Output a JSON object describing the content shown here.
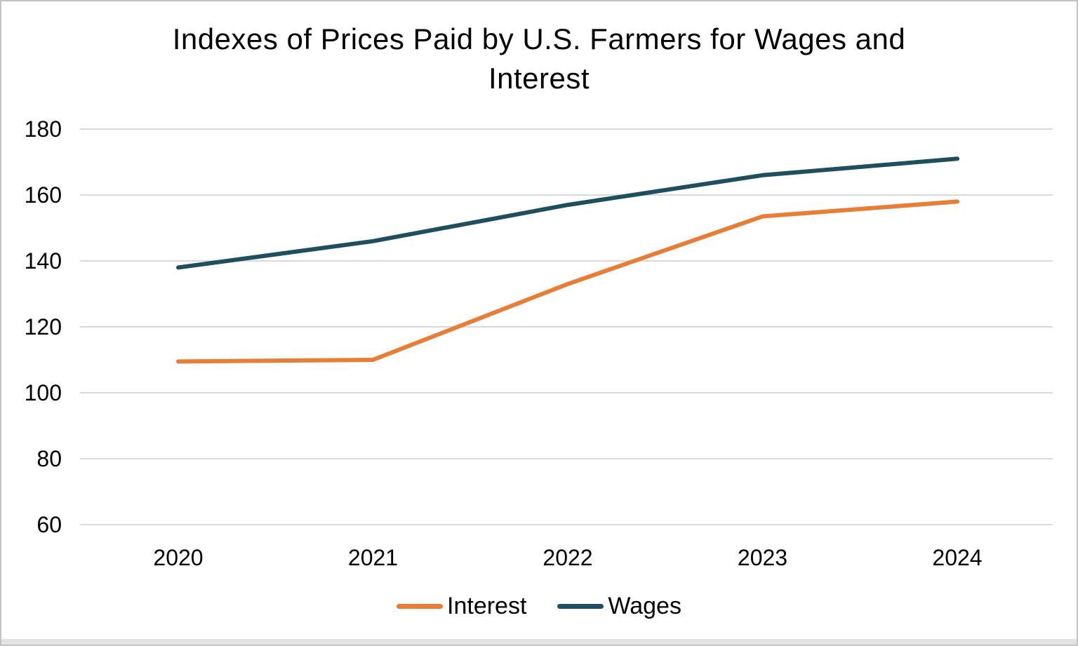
{
  "page": {
    "background_color": "#ffffff",
    "border_color": "#c3c3c3"
  },
  "chart_data": {
    "type": "line",
    "title": "Indexes of Prices Paid by U.S. Farmers for Wages and Interest",
    "title_lines": [
      "Indexes of Prices Paid by U.S. Farmers for Wages and",
      "Interest"
    ],
    "x": [
      2020,
      2021,
      2022,
      2023,
      2024
    ],
    "series": [
      {
        "name": "Interest",
        "color": "#e87d35",
        "values": [
          109.5,
          110,
          133,
          153.5,
          158
        ]
      },
      {
        "name": "Wages",
        "color": "#1f4e5f",
        "values": [
          138,
          146,
          157,
          166,
          171
        ]
      }
    ],
    "xlabel": "",
    "ylabel": "",
    "ylim": [
      60,
      180
    ],
    "yticks": [
      180,
      160,
      140,
      120,
      100,
      80,
      60
    ],
    "grid": "horizontal",
    "gridline_color": "#d9d9d9",
    "axis_label_color": "#000000",
    "legend_position": "bottom"
  }
}
